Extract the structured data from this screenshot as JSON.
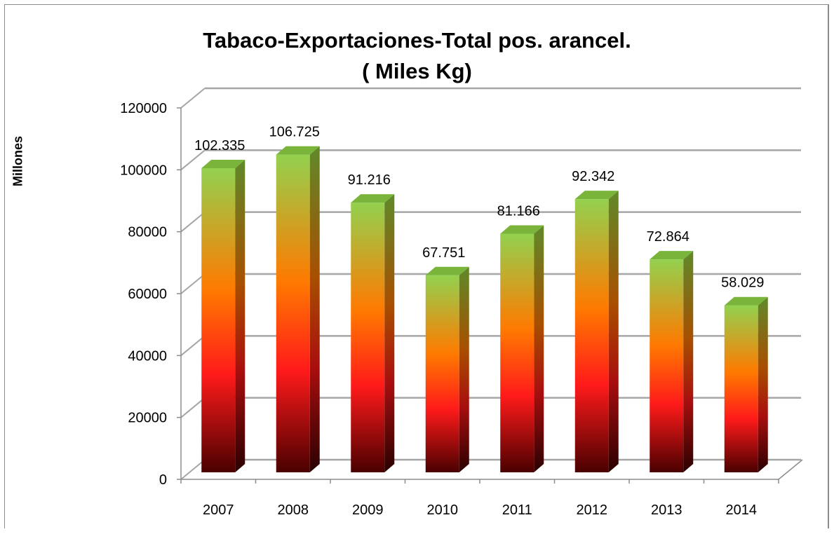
{
  "chart_data": {
    "type": "bar",
    "title_lines": [
      "Tabaco-Exportaciones-Total pos. arancel.",
      "( Miles Kg)"
    ],
    "ylabel": "Millones",
    "xlabel": "",
    "categories": [
      "2007",
      "2008",
      "2009",
      "2010",
      "2011",
      "2012",
      "2013",
      "2014"
    ],
    "values": [
      102335,
      106725,
      91216,
      67751,
      81166,
      92342,
      72864,
      58029
    ],
    "data_labels": [
      "102.335",
      "106.725",
      "91.216",
      "67.751",
      "81.166",
      "92.342",
      "72.864",
      "58.029"
    ],
    "ylim": [
      0,
      120000
    ],
    "yticks": [
      0,
      20000,
      40000,
      60000,
      80000,
      100000,
      120000
    ],
    "grid": true,
    "legend": "none",
    "style": "3d-columns",
    "colors": {
      "bar_top": "#93d14f",
      "bar_mid_orange": "#ff7a00",
      "bar_mid_red": "#ff1a1a",
      "bar_bottom": "#4a0000",
      "side_top": "#5f8a2a",
      "side_bottom": "#2a0000",
      "top_face": "#7ab43a",
      "gridline": "#a6a6a6",
      "axis": "#8c8c8c"
    }
  }
}
